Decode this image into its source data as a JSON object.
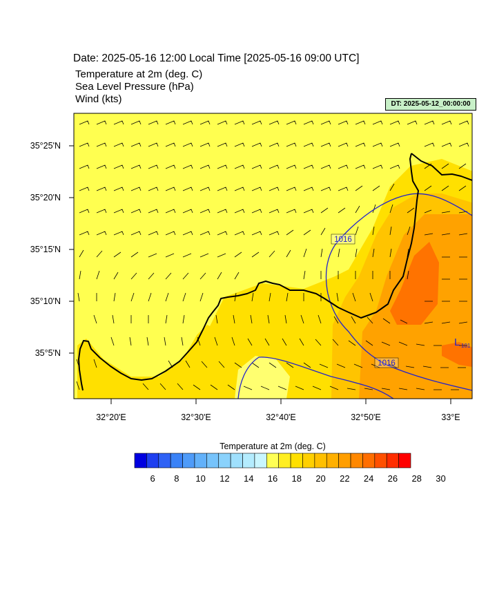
{
  "header": {
    "date_line": "Date: 2025-05-16  12:00 Local Time [2025-05-16  09:00 UTC]",
    "fields": [
      "Temperature at 2m   (deg. C)",
      "Sea Level Pressure   (hPa)",
      "Wind   (kts)"
    ],
    "dt_badge": "DT: 2025-05-12_00:00:00"
  },
  "map": {
    "lat_labels": [
      "35°25'N",
      "35°20'N",
      "35°15'N",
      "35°10'N",
      "35°5'N"
    ],
    "lon_labels": [
      "32°20'E",
      "32°30'E",
      "32°40'E",
      "32°50'E",
      "33°E"
    ],
    "pressure_labels": [
      "1016",
      "1016"
    ],
    "low_marker": "L",
    "low_value": "101"
  },
  "legend": {
    "title": "Temperature at 2m  (deg. C)",
    "tick_labels": [
      "6",
      "8",
      "10",
      "12",
      "14",
      "16",
      "18",
      "20",
      "22",
      "24",
      "26",
      "28",
      "30"
    ],
    "colors": [
      "#0000e0",
      "#1e3ff0",
      "#2f62f5",
      "#3a82f7",
      "#4e9bf9",
      "#62b1fa",
      "#76c3fb",
      "#8ad2fc",
      "#9fe0fd",
      "#b4ecfe",
      "#c9f6ff",
      "#ffff55",
      "#ffee22",
      "#ffe000",
      "#ffd000",
      "#ffc000",
      "#ffb000",
      "#ff9e00",
      "#ff8800",
      "#ff6e00",
      "#ff5000",
      "#ff2d00",
      "#ff0000"
    ]
  },
  "colors": {
    "sea": "#ffff50",
    "land_warm": "#ffe000",
    "land_hot": "#ffc400",
    "land_hotter": "#ffa200",
    "land_hottest": "#ff7300",
    "coast": "#000000",
    "isobar": "#2222cc"
  }
}
